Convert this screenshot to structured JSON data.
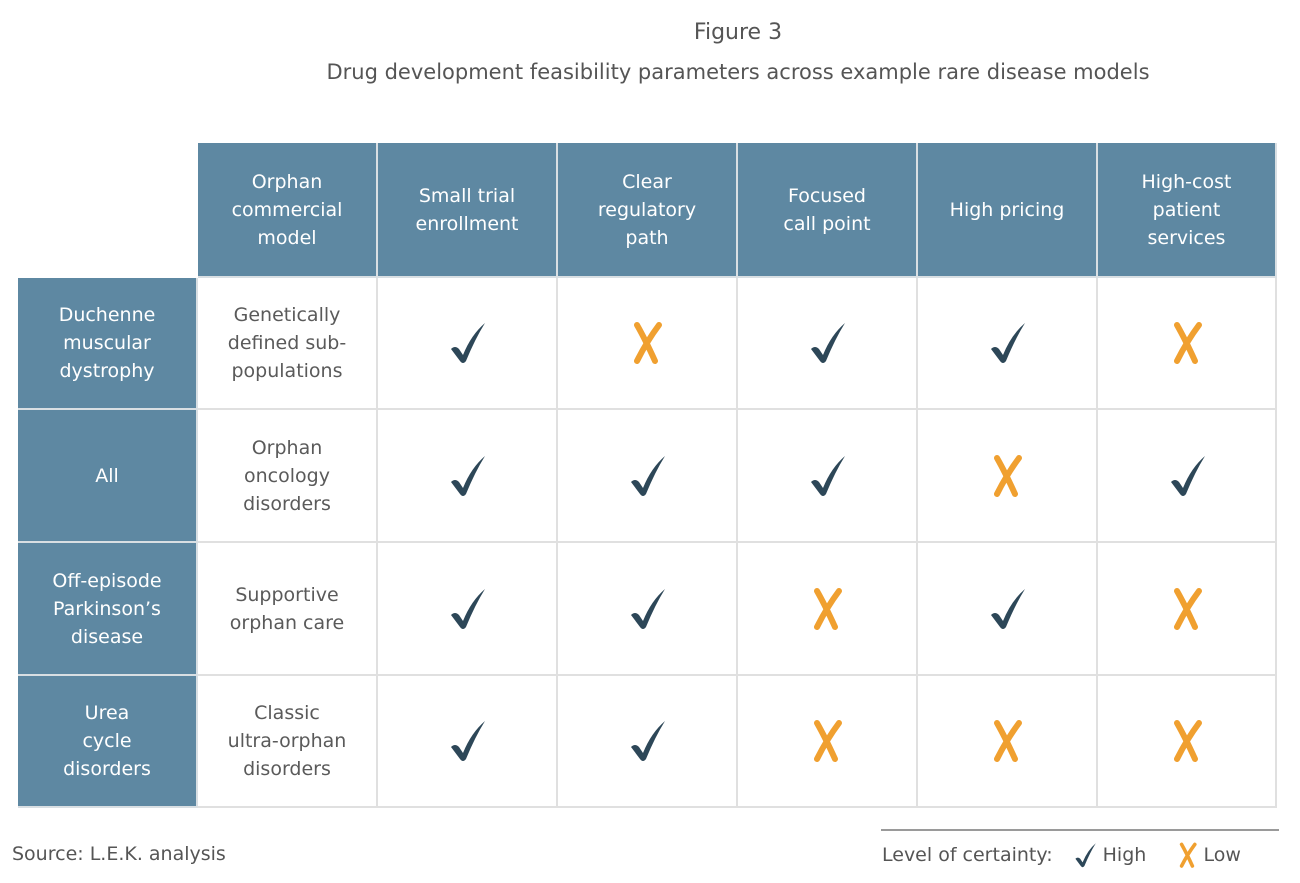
{
  "figure_number": "Figure 3",
  "title": "Drug development feasibility parameters across example rare disease models",
  "source": "Source: L.E.K. analysis",
  "legend": {
    "label": "Level of certainty:",
    "high": "High",
    "low": "Low"
  },
  "colors": {
    "header_bg": "#5e88a2",
    "high": "#2d4758",
    "low": "#f0a030"
  },
  "icons": {
    "high": "checkmark-icon",
    "low": "x-mark-icon"
  },
  "chart_data": {
    "type": "table",
    "columns": [
      "Orphan\ncommercial\nmodel",
      "Small trial\nenrollment",
      "Clear\nregulatory\npath",
      "Focused\ncall point",
      "High pricing",
      "High-cost\npatient\nservices"
    ],
    "rows": [
      {
        "disease": "Duchenne\nmuscular\ndystrophy",
        "model": "Genetically\ndefined sub-\npopulations",
        "values": [
          "High",
          "Low",
          "High",
          "High",
          "Low"
        ]
      },
      {
        "disease": "All",
        "model": "Orphan\noncology\ndisorders",
        "values": [
          "High",
          "High",
          "High",
          "Low",
          "High"
        ]
      },
      {
        "disease": "Off-episode\nParkinson’s\ndisease",
        "model": "Supportive\norphan care",
        "values": [
          "High",
          "High",
          "Low",
          "High",
          "Low"
        ]
      },
      {
        "disease": "Urea\ncycle\ndisorders",
        "model": "Classic\nultra-orphan\ndisorders",
        "values": [
          "High",
          "High",
          "Low",
          "Low",
          "Low"
        ]
      }
    ]
  }
}
